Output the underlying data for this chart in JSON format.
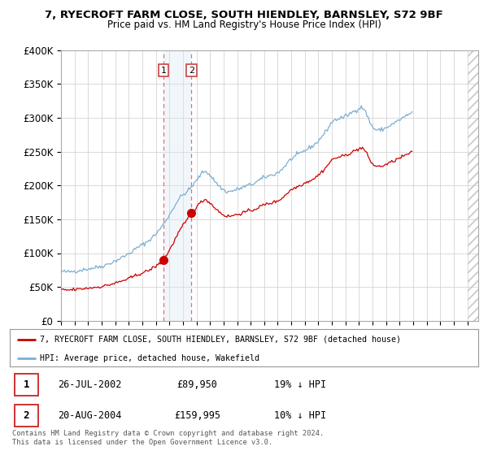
{
  "title": "7, RYECROFT FARM CLOSE, SOUTH HIENDLEY, BARNSLEY, S72 9BF",
  "subtitle": "Price paid vs. HM Land Registry's House Price Index (HPI)",
  "ylim": [
    0,
    400000
  ],
  "yticks": [
    0,
    50000,
    100000,
    150000,
    200000,
    250000,
    300000,
    350000,
    400000
  ],
  "ytick_labels": [
    "£0",
    "£50K",
    "£100K",
    "£150K",
    "£200K",
    "£250K",
    "£300K",
    "£350K",
    "£400K"
  ],
  "hpi_color": "#7bafd4",
  "price_color": "#cc0000",
  "transaction1_date": 2002.57,
  "transaction1_price": 89950,
  "transaction2_date": 2004.63,
  "transaction2_price": 159995,
  "shade_color": "#d8e8f5",
  "dashed_color": "#e06060",
  "legend_property_label": "7, RYECROFT FARM CLOSE, SOUTH HIENDLEY, BARNSLEY, S72 9BF (detached house)",
  "legend_hpi_label": "HPI: Average price, detached house, Wakefield",
  "table_rows": [
    {
      "num": "1",
      "date": "26-JUL-2002",
      "price": "£89,950",
      "hpi": "19% ↓ HPI"
    },
    {
      "num": "2",
      "date": "20-AUG-2004",
      "price": "£159,995",
      "hpi": "10% ↓ HPI"
    }
  ],
  "footer": "Contains HM Land Registry data © Crown copyright and database right 2024.\nThis data is licensed under the Open Government Licence v3.0.",
  "background_color": "#ffffff",
  "hpi_monthly": [
    72000,
    72500,
    73100,
    72800,
    72500,
    72200,
    71900,
    72100,
    72400,
    72700,
    73000,
    73200,
    73500,
    73200,
    73800,
    74100,
    74500,
    74800,
    75200,
    75000,
    75400,
    75700,
    76000,
    76400,
    76800,
    77200,
    77600,
    77200,
    77800,
    78200,
    78600,
    79000,
    79500,
    79200,
    79800,
    80100,
    80500,
    81000,
    81500,
    82000,
    82800,
    83500,
    84200,
    84800,
    85500,
    86200,
    87000,
    87500,
    88200,
    89000,
    90000,
    90800,
    91600,
    92400,
    93500,
    94500,
    95500,
    96000,
    97000,
    98000,
    99000,
    100000,
    101500,
    102500,
    103500,
    104500,
    106000,
    107200,
    108500,
    109500,
    110500,
    111500,
    112500,
    113200,
    114000,
    115000,
    116200,
    117500,
    119000,
    120500,
    122000,
    123500,
    125000,
    126500,
    128000,
    130000,
    132000,
    134000,
    136000,
    138500,
    141000,
    143500,
    146000,
    148500,
    151000,
    153500,
    156000,
    159000,
    162000,
    165000,
    168000,
    171000,
    174000,
    176500,
    179000,
    181500,
    183500,
    185000,
    186000,
    187500,
    188500,
    189500,
    191000,
    192500,
    194500,
    196500,
    198500,
    200500,
    202500,
    204500,
    207000,
    209500,
    212000,
    214500,
    217000,
    219000,
    220500,
    221500,
    222000,
    221000,
    219500,
    217500,
    215000,
    213000,
    211000,
    209000,
    207000,
    205000,
    203000,
    201000,
    199000,
    197500,
    196000,
    194500,
    193000,
    192000,
    191000,
    190500,
    190000,
    190500,
    191000,
    191500,
    192000,
    192500,
    193000,
    193500,
    194000,
    194500,
    195000,
    195800,
    196500,
    197200,
    198000,
    198500,
    199000,
    199500,
    200000,
    200500,
    201000,
    201500,
    202000,
    203000,
    204000,
    205000,
    206000,
    207000,
    208000,
    209000,
    210000,
    211000,
    212000,
    212500,
    213000,
    213500,
    214000,
    214500,
    215000,
    215500,
    216000,
    216500,
    217000,
    218000,
    219000,
    220000,
    221000,
    222500,
    224000,
    226000,
    228000,
    230000,
    232000,
    234000,
    236000,
    238000,
    239500,
    240500,
    241500,
    242500,
    243500,
    244500,
    245500,
    246500,
    247500,
    248500,
    249500,
    250500,
    251500,
    252500,
    253500,
    254500,
    255500,
    256500,
    257500,
    258500,
    259500,
    260500,
    262000,
    264000,
    266000,
    268000,
    270000,
    272000,
    274000,
    276000,
    278000,
    280500,
    283000,
    286000,
    289000,
    292000,
    294000,
    295500,
    296500,
    297000,
    297500,
    298000,
    298500,
    299000,
    299500,
    300000,
    300500,
    301000,
    302000,
    303000,
    304000,
    305000,
    306000,
    307000,
    308000,
    309000,
    310000,
    311000,
    312000,
    313000,
    314000,
    315000,
    316000,
    317000,
    315000,
    312000,
    308000,
    304000,
    300000,
    296000,
    292000,
    288000,
    285000,
    284000,
    283000,
    282000,
    281500,
    281000,
    281500,
    282000,
    282500,
    283000,
    283500,
    284000,
    285000,
    286000,
    287000,
    288000,
    289000,
    290000,
    291000,
    292000,
    293000,
    294000,
    295000,
    296000,
    297000,
    298000,
    299000,
    300000,
    301000,
    302000,
    303000,
    304000,
    305000,
    306000,
    307000,
    308000
  ],
  "start_year": 1995,
  "start_month": 1
}
